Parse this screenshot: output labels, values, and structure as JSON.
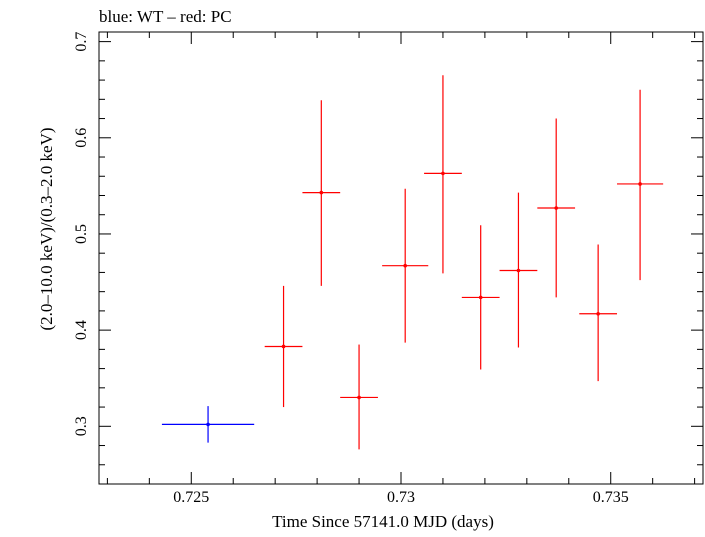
{
  "chart_data": {
    "type": "scatter",
    "title": "blue: WT – red: PC",
    "xlabel": "Time Since 57141.0 MJD (days)",
    "ylabel": "(2.0–10.0 keV)/(0.3–2.0 keV)",
    "xlim": [
      0.7228,
      0.7372
    ],
    "ylim": [
      0.24,
      0.71
    ],
    "x_major_ticks": [
      0.725,
      0.73,
      0.735
    ],
    "x_tick_labels": [
      "0.725",
      "0.73",
      "0.735"
    ],
    "x_minor_step": 0.001,
    "y_major_ticks": [
      0.3,
      0.4,
      0.5,
      0.6,
      0.7
    ],
    "y_tick_labels": [
      "0.3",
      "0.4",
      "0.5",
      "0.6",
      "0.7"
    ],
    "y_minor_step": 0.02,
    "grid": false,
    "series": [
      {
        "name": "WT",
        "color": "#0000ff",
        "points": [
          {
            "x": 0.7254,
            "y": 0.302,
            "xerr": 0.0011,
            "ylo": 0.283,
            "yhi": 0.321
          }
        ]
      },
      {
        "name": "PC",
        "color": "#ff0000",
        "points": [
          {
            "x": 0.7272,
            "y": 0.383,
            "xerr": 0.00045,
            "ylo": 0.32,
            "yhi": 0.446
          },
          {
            "x": 0.7281,
            "y": 0.543,
            "xerr": 0.00045,
            "ylo": 0.446,
            "yhi": 0.639
          },
          {
            "x": 0.729,
            "y": 0.33,
            "xerr": 0.00045,
            "ylo": 0.276,
            "yhi": 0.385
          },
          {
            "x": 0.7301,
            "y": 0.467,
            "xerr": 0.00055,
            "ylo": 0.387,
            "yhi": 0.547
          },
          {
            "x": 0.731,
            "y": 0.563,
            "xerr": 0.00045,
            "ylo": 0.459,
            "yhi": 0.665
          },
          {
            "x": 0.7319,
            "y": 0.434,
            "xerr": 0.00045,
            "ylo": 0.359,
            "yhi": 0.509
          },
          {
            "x": 0.7328,
            "y": 0.462,
            "xerr": 0.00045,
            "ylo": 0.382,
            "yhi": 0.543
          },
          {
            "x": 0.7337,
            "y": 0.527,
            "xerr": 0.00045,
            "ylo": 0.434,
            "yhi": 0.62
          },
          {
            "x": 0.7347,
            "y": 0.417,
            "xerr": 0.00045,
            "ylo": 0.347,
            "yhi": 0.489
          },
          {
            "x": 0.7357,
            "y": 0.552,
            "xerr": 0.00055,
            "ylo": 0.452,
            "yhi": 0.65
          }
        ]
      }
    ]
  }
}
